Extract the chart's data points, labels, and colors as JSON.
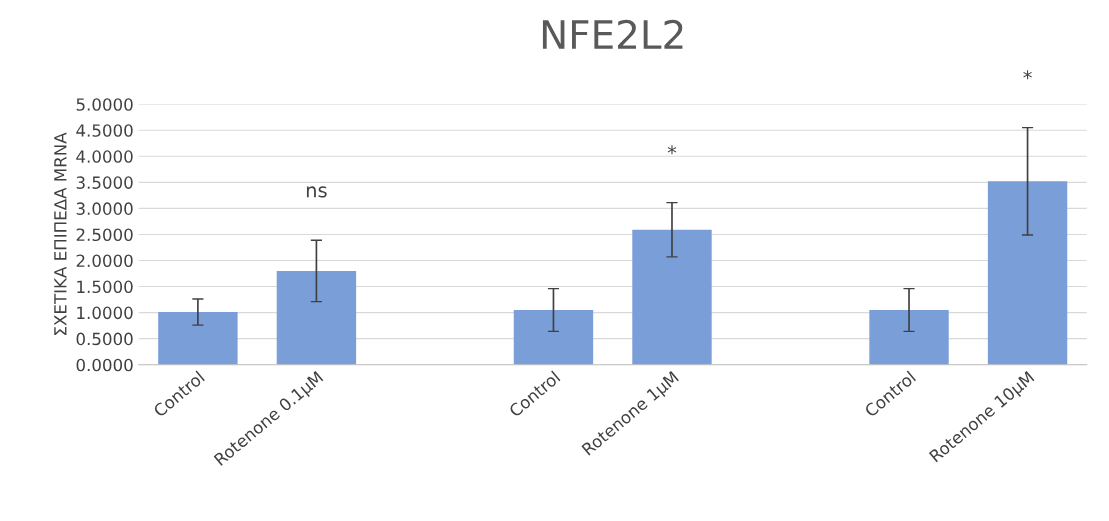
{
  "chart_data": {
    "type": "bar",
    "title": "NFE2L2",
    "ylabel": "ΣΧΕΤΙΚΑ ΕΠΙΠΕΔΑ MRNA",
    "categories": [
      "Control",
      "Rotenone 0.1μM",
      null,
      "Control",
      "Rotenone 1μM",
      null,
      "Control",
      "Rotenone 10μM"
    ],
    "values": [
      1.01,
      1.8,
      null,
      1.05,
      2.59,
      null,
      1.05,
      3.52
    ],
    "errors": [
      0.25,
      0.59,
      null,
      0.41,
      0.52,
      null,
      0.41,
      1.03
    ],
    "color": "#7a9fd8",
    "ylim": [
      0,
      5
    ],
    "yticks": [
      {
        "value": 0,
        "label": "0.0000"
      },
      {
        "value": 0.5,
        "label": "0.5000"
      },
      {
        "value": 1,
        "label": "1.0000"
      },
      {
        "value": 1.5,
        "label": "1.5000"
      },
      {
        "value": 2,
        "label": "2.0000"
      },
      {
        "value": 2.5,
        "label": "2.5000"
      },
      {
        "value": 3,
        "label": "3.0000"
      },
      {
        "value": 3.5,
        "label": "3.5000"
      },
      {
        "value": 4,
        "label": "4.0000"
      },
      {
        "value": 4.5,
        "label": "4.5000"
      },
      {
        "value": 5,
        "label": "5.0000"
      }
    ],
    "grid": "y",
    "annotations": [
      "ns",
      "*",
      "*"
    ]
  }
}
